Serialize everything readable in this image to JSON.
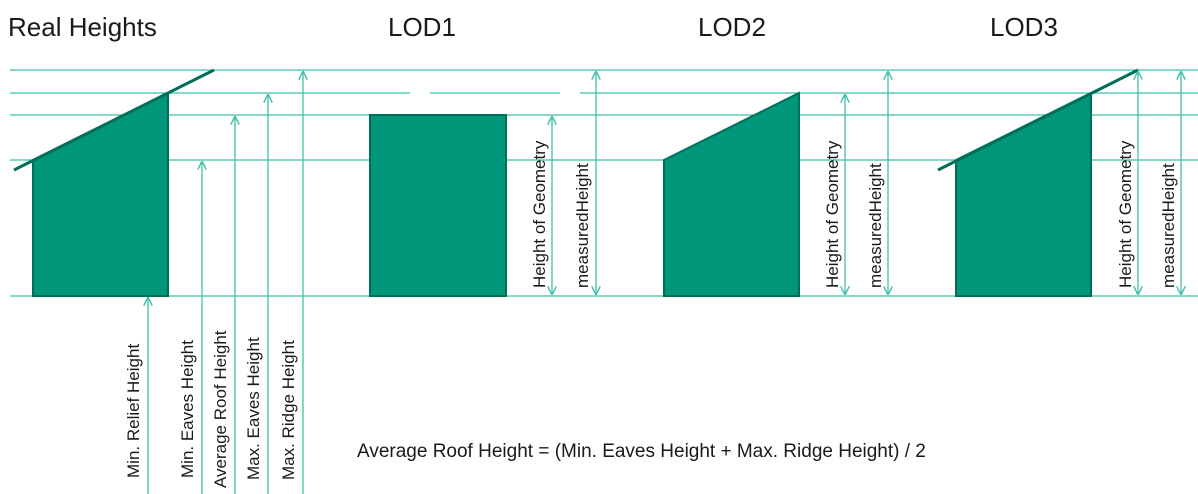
{
  "titles": {
    "real": "Real Heights",
    "lod1": "LOD1",
    "lod2": "LOD2",
    "lod3": "LOD3"
  },
  "real_labels": {
    "min_relief": "Min. Relief Height",
    "min_eaves": "Min. Eaves Height",
    "avg_roof": "Average Roof Height",
    "max_eaves": "Max. Eaves Height",
    "max_ridge": "Max. Ridge Height"
  },
  "lod_labels": {
    "height_of_geometry": "Height of Geometry",
    "measured_height": "measuredHeight"
  },
  "formula": "Average Roof Height = (Min. Eaves Height + Max. Ridge Height) / 2",
  "colors": {
    "line": "#3fc1a6",
    "building_fill": "#009679",
    "building_stroke": "#006f59",
    "text": "#1a1a1a"
  }
}
